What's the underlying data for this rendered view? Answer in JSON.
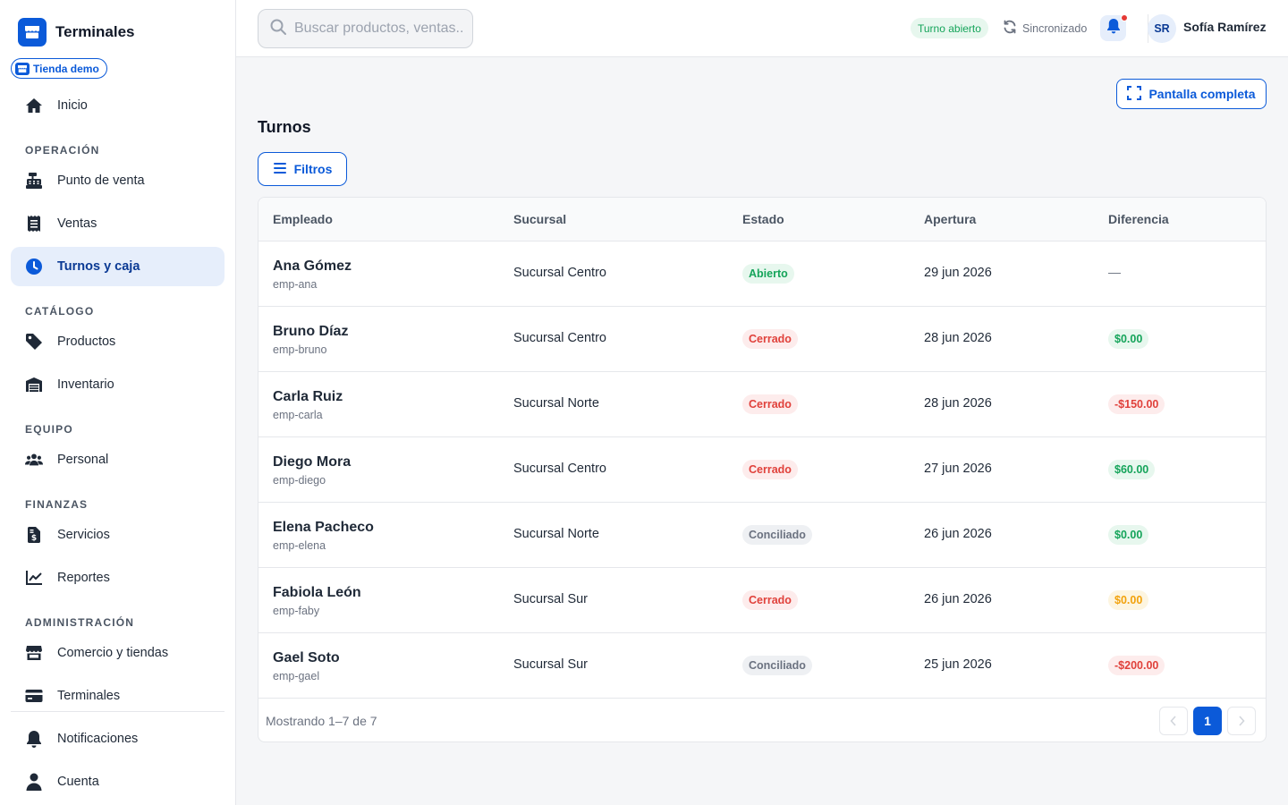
{
  "brand": {
    "name": "Terminales"
  },
  "store_badge": "Tienda demo",
  "nav": {
    "home": "Inicio",
    "sections": {
      "operacion": "OPERACIÓN",
      "catalogo": "CATÁLOGO",
      "equipo": "EQUIPO",
      "finanzas": "FINANZAS",
      "administracion": "ADMINISTRACIÓN"
    },
    "items": {
      "pos": "Punto de venta",
      "ventas": "Ventas",
      "turnos": "Turnos y caja",
      "productos": "Productos",
      "inventario": "Inventario",
      "personal": "Personal",
      "servicios": "Servicios",
      "reportes": "Reportes",
      "comercio": "Comercio y tiendas",
      "terminales": "Terminales",
      "notificaciones": "Notificaciones",
      "cuenta": "Cuenta"
    },
    "active": "turnos"
  },
  "topbar": {
    "search_placeholder": "Buscar productos, ventas...",
    "shift_status": "Turno abierto",
    "sync_status": "Sincronizado",
    "user_initials": "SR",
    "user_name": "Sofía Ramírez"
  },
  "main": {
    "fullscreen_label": "Pantalla completa",
    "title": "Turnos",
    "filters_label": "Filtros"
  },
  "table": {
    "headers": {
      "empleado": "Empleado",
      "sucursal": "Sucursal",
      "estado": "Estado",
      "apertura": "Apertura",
      "diferencia": "Diferencia"
    },
    "rows": [
      {
        "name": "Ana Gómez",
        "id": "emp-ana",
        "branch": "Sucursal Centro",
        "status": "Abierto",
        "status_tone": "green",
        "opened": "29 jun 2026",
        "diff": "—",
        "diff_tone": "none"
      },
      {
        "name": "Bruno Díaz",
        "id": "emp-bruno",
        "branch": "Sucursal Centro",
        "status": "Cerrado",
        "status_tone": "red",
        "opened": "28 jun 2026",
        "diff": "$0.00",
        "diff_tone": "green"
      },
      {
        "name": "Carla Ruiz",
        "id": "emp-carla",
        "branch": "Sucursal Norte",
        "status": "Cerrado",
        "status_tone": "red",
        "opened": "28 jun 2026",
        "diff": "-$150.00",
        "diff_tone": "red"
      },
      {
        "name": "Diego Mora",
        "id": "emp-diego",
        "branch": "Sucursal Centro",
        "status": "Cerrado",
        "status_tone": "red",
        "opened": "27 jun 2026",
        "diff": "$60.00",
        "diff_tone": "green"
      },
      {
        "name": "Elena Pacheco",
        "id": "emp-elena",
        "branch": "Sucursal Norte",
        "status": "Conciliado",
        "status_tone": "gray",
        "opened": "26 jun 2026",
        "diff": "$0.00",
        "diff_tone": "green"
      },
      {
        "name": "Fabiola León",
        "id": "emp-faby",
        "branch": "Sucursal Sur",
        "status": "Cerrado",
        "status_tone": "red",
        "opened": "26 jun 2026",
        "diff": "$0.00",
        "diff_tone": "amber"
      },
      {
        "name": "Gael Soto",
        "id": "emp-gael",
        "branch": "Sucursal Sur",
        "status": "Conciliado",
        "status_tone": "gray",
        "opened": "25 jun 2026",
        "diff": "-$200.00",
        "diff_tone": "red"
      }
    ],
    "showing": "Mostrando 1–7 de 7",
    "current_page": "1"
  },
  "colors": {
    "accent": "#0b5ad9",
    "active_bg": "#e6eefb",
    "green": "#15a45a",
    "red": "#e0413b",
    "amber": "#f2a20c",
    "gray": "#6b7280"
  },
  "icons": {
    "brand": "store-icon",
    "home": "home-icon",
    "pos": "cash-register-icon",
    "ventas": "receipt-icon",
    "turnos": "clock-icon",
    "productos": "tag-icon",
    "inventario": "warehouse-icon",
    "personal": "users-icon",
    "servicios": "invoice-dollar-icon",
    "reportes": "chart-line-icon",
    "comercio": "store-icon",
    "terminales": "credit-card-icon",
    "notificaciones": "bell-icon",
    "cuenta": "user-icon",
    "search": "search-icon",
    "sync": "sync-icon",
    "fullscreen": "expand-icon",
    "filters": "bars-icon"
  }
}
